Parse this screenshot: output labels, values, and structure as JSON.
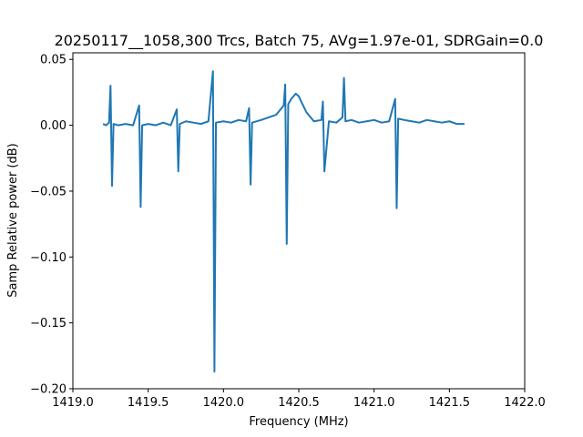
{
  "chart_data": {
    "type": "line",
    "title": "20250117__1058,300 Trcs, Batch 75, AVg=1.97e-01, SDRGain=0.0",
    "xlabel": "Frequency (MHz)",
    "ylabel": "Samp Relative power (dB)",
    "xlim": [
      1419.0,
      1422.0
    ],
    "ylim": [
      -0.2,
      0.055
    ],
    "xticks": [
      1419.0,
      1419.5,
      1420.0,
      1420.5,
      1421.0,
      1421.5,
      1422.0
    ],
    "xtick_labels": [
      "1419.0",
      "1419.5",
      "1420.0",
      "1420.5",
      "1421.0",
      "1421.5",
      "1422.0"
    ],
    "yticks": [
      0.05,
      0.0,
      -0.05,
      -0.1,
      -0.15,
      -0.2
    ],
    "ytick_labels": [
      "0.05",
      "0.00",
      "−0.05",
      "−0.10",
      "−0.15",
      "−0.20"
    ],
    "grid": false,
    "series_color": "#1f77b4",
    "series": [
      {
        "x": [
          1419.2,
          1419.22,
          1419.24,
          1419.25,
          1419.26,
          1419.27,
          1419.3,
          1419.35,
          1419.4,
          1419.44,
          1419.45,
          1419.46,
          1419.5,
          1419.55,
          1419.6,
          1419.65,
          1419.69,
          1419.7,
          1419.71,
          1419.75,
          1419.8,
          1419.85,
          1419.9,
          1419.93,
          1419.94,
          1419.95,
          1420.0,
          1420.05,
          1420.1,
          1420.15,
          1420.17,
          1420.18,
          1420.19,
          1420.25,
          1420.3,
          1420.35,
          1420.4,
          1420.41,
          1420.42,
          1420.43,
          1420.45,
          1420.48,
          1420.5,
          1420.52,
          1420.55,
          1420.6,
          1420.65,
          1420.66,
          1420.67,
          1420.7,
          1420.75,
          1420.79,
          1420.8,
          1420.81,
          1420.85,
          1420.9,
          1420.95,
          1421.0,
          1421.05,
          1421.1,
          1421.14,
          1421.15,
          1421.16,
          1421.2,
          1421.25,
          1421.3,
          1421.35,
          1421.4,
          1421.45,
          1421.5,
          1421.55,
          1421.6
        ],
        "y": [
          0.001,
          0.0,
          0.002,
          0.03,
          -0.046,
          0.001,
          0.0,
          0.001,
          0.0,
          0.015,
          -0.062,
          0.0,
          0.001,
          0.0,
          0.002,
          0.0,
          0.012,
          -0.035,
          0.001,
          0.003,
          0.002,
          0.001,
          0.003,
          0.041,
          -0.187,
          0.002,
          0.003,
          0.002,
          0.004,
          0.003,
          0.013,
          -0.045,
          0.002,
          0.004,
          0.006,
          0.008,
          0.015,
          0.031,
          -0.09,
          0.016,
          0.02,
          0.024,
          0.022,
          0.017,
          0.01,
          0.003,
          0.004,
          0.018,
          -0.035,
          0.003,
          0.002,
          0.006,
          0.036,
          0.003,
          0.004,
          0.002,
          0.003,
          0.004,
          0.002,
          0.003,
          0.02,
          -0.063,
          0.005,
          0.004,
          0.003,
          0.002,
          0.004,
          0.003,
          0.002,
          0.003,
          0.001,
          0.001
        ]
      }
    ]
  }
}
